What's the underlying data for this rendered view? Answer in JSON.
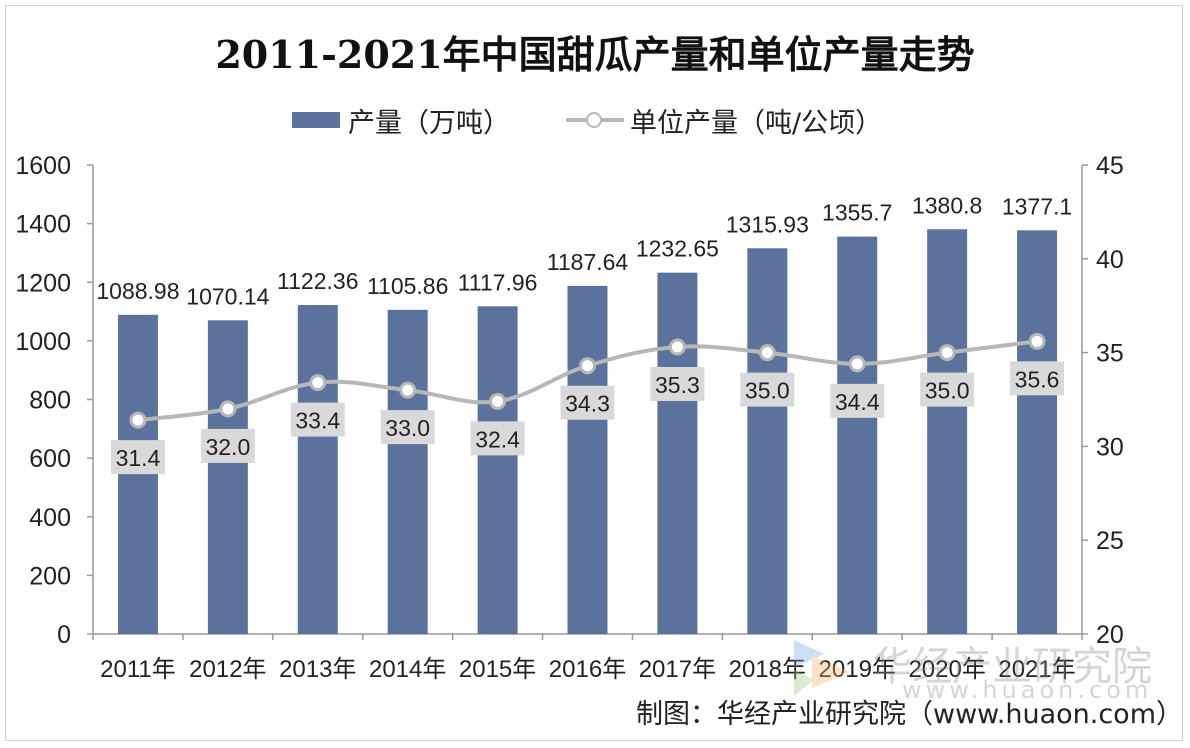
{
  "title": "2011-2021年中国甜瓜产量和单位产量走势",
  "legend": {
    "bar_label": "产量（万吨）",
    "line_label": "单位产量（吨/公顷）"
  },
  "source": "制图：华经产业研究院（www.huaon.com）",
  "watermark": {
    "text": "华经产业研究院",
    "url": "www.huaon.com"
  },
  "colors": {
    "bar": "#5b739c",
    "line": "#b7b7b7",
    "label_box": "#d9d9d9"
  },
  "chart_data": {
    "type": "bar",
    "title": "2011-2021年中国甜瓜产量和单位产量走势",
    "categories": [
      "2011年",
      "2012年",
      "2013年",
      "2014年",
      "2015年",
      "2016年",
      "2017年",
      "2018年",
      "2019年",
      "2020年",
      "2021年"
    ],
    "series": [
      {
        "name": "产量（万吨）",
        "type": "bar",
        "axis": "left",
        "values": [
          1088.98,
          1070.14,
          1122.36,
          1105.86,
          1117.96,
          1187.64,
          1232.65,
          1315.93,
          1355.7,
          1380.8,
          1377.1
        ],
        "labels": [
          "1088.98",
          "1070.14",
          "1122.36",
          "1105.86",
          "1117.96",
          "1187.64",
          "1232.65",
          "1315.93",
          "1355.7",
          "1380.8",
          "1377.1"
        ]
      },
      {
        "name": "单位产量（吨/公顷）",
        "type": "line",
        "axis": "right",
        "values": [
          31.4,
          32.0,
          33.4,
          33.0,
          32.4,
          34.3,
          35.3,
          35.0,
          34.4,
          35.0,
          35.6
        ],
        "labels": [
          "31.4",
          "32.0",
          "33.4",
          "33.0",
          "32.4",
          "34.3",
          "35.3",
          "35.0",
          "34.4",
          "35.0",
          "35.6"
        ]
      }
    ],
    "y_left": {
      "min": 0,
      "max": 1600,
      "ticks": [
        "0",
        "200",
        "400",
        "600",
        "800",
        "1000",
        "1200",
        "1400",
        "1600"
      ]
    },
    "y_right": {
      "min": 20,
      "max": 45,
      "ticks": [
        "20",
        "25",
        "30",
        "35",
        "40",
        "45"
      ]
    },
    "grid": false,
    "legend_position": "top"
  }
}
